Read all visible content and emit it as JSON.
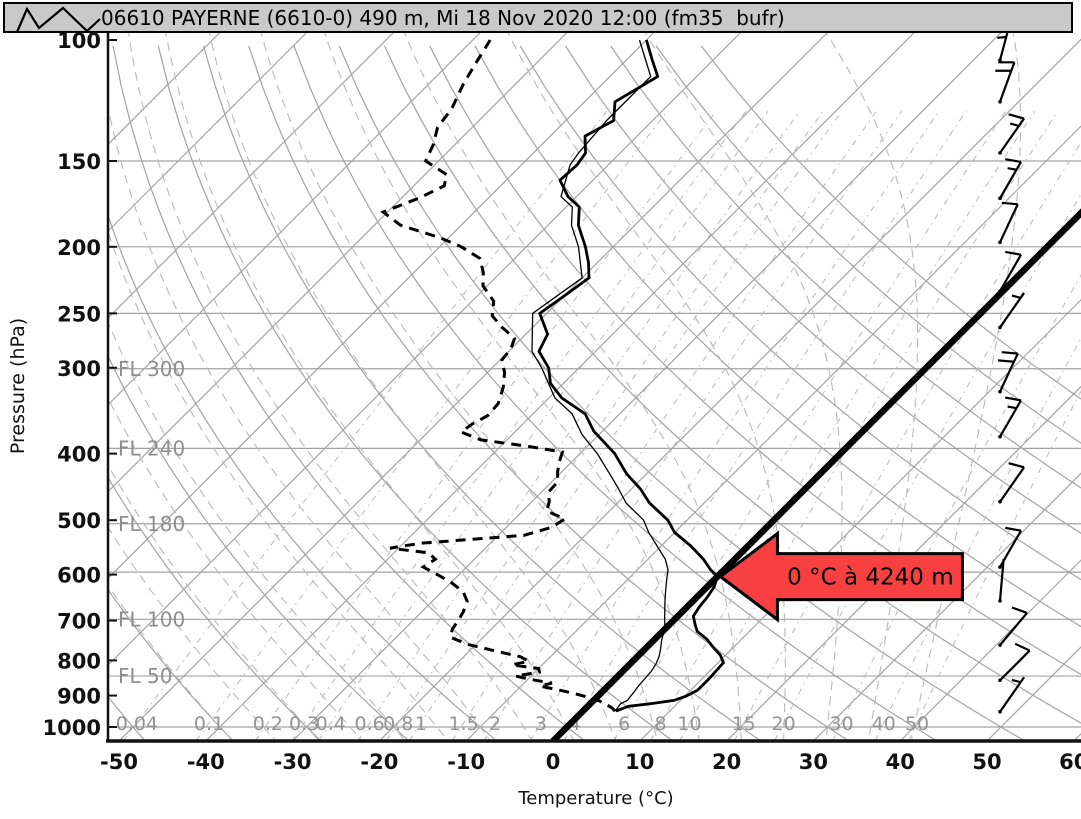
{
  "header": {
    "title": "06610 PAYERNE (6610-0) 490 m, Mi 18 Nov 2020 12:00 (fm35  bufr)",
    "logo_icon": "zigzag-mountains"
  },
  "axes": {
    "pressure": {
      "title": "Pressure (hPa)",
      "ticks": [
        100,
        150,
        200,
        250,
        300,
        400,
        500,
        600,
        700,
        800,
        900,
        1000
      ],
      "scale": "log",
      "top_hpa": 100,
      "bottom_hpa": 1047
    },
    "temperature": {
      "title": "Temperature (°C)",
      "ticks": [
        -50,
        -40,
        -30,
        -20,
        -10,
        0,
        10,
        20,
        30,
        40,
        50,
        60
      ],
      "skew": "45deg"
    }
  },
  "flight_levels": [
    {
      "label": "FL 300",
      "p": 301
    },
    {
      "label": "FL 240",
      "p": 393
    },
    {
      "label": "FL 180",
      "p": 506
    },
    {
      "label": "",
      "p": 595
    },
    {
      "label": "FL 100",
      "p": 697
    },
    {
      "label": "FL 50",
      "p": 843
    }
  ],
  "pressure_gridlines": [
    150,
    200,
    250,
    1000
  ],
  "isopleths": {
    "isotherm_step_c": 10,
    "isotherm_min_c": -120,
    "isotherm_max_c": 60,
    "highlight_isotherm_c": 0,
    "dry_adiabats_theta_c": [
      -50,
      -40,
      -30,
      -20,
      -10,
      0,
      10,
      20,
      30,
      40,
      50,
      60,
      70,
      80,
      90,
      100,
      110,
      120,
      130
    ],
    "moist_adiabats_thetaw_c": [
      -40,
      -35,
      -30,
      -25,
      -20,
      -15,
      -10,
      -5,
      0,
      5,
      10,
      15,
      20,
      25,
      30,
      35,
      40
    ],
    "mixing_ratio_g_kg": [
      0.04,
      0.1,
      0.2,
      0.3,
      0.4,
      0.6,
      0.8,
      1,
      1.5,
      2,
      3,
      4,
      6,
      8,
      10,
      15,
      20,
      30,
      40,
      50
    ]
  },
  "annotation": {
    "freezing_level_label": "0 °C à 4240 m",
    "arrow_color": "#f94040",
    "points_to": {
      "t_c": 0,
      "p_hpa": 604
    }
  },
  "colors": {
    "header_bg": "#c9c9c9",
    "grid_solid": "#a3a3a3",
    "grid_moist": "#b9b9b9",
    "grid_mixing": "#bfbfbf",
    "grid_label": "#949494",
    "curve": "#000000",
    "zero_line": "#000000",
    "arrow_fill": "#f94040"
  },
  "chart_data": {
    "type": "line (skew-T log-P thermodynamic sounding)",
    "station": "06610 Payerne, 490 m",
    "valid": "Mi 18 Nov 2020 12:00",
    "x_axis": "Temperature (°C), skewed 45°, -50..60 labelled",
    "y_axis": "Pressure (hPa), log scale, 100..1000 labelled",
    "series": [
      {
        "name": "temperature",
        "style": "solid-thick",
        "points": [
          [
            100,
            -70
          ],
          [
            107,
            -67
          ],
          [
            113,
            -64.5
          ],
          [
            123,
            -66.5
          ],
          [
            131,
            -64.5
          ],
          [
            138,
            -66
          ],
          [
            146,
            -64
          ],
          [
            152,
            -63.6
          ],
          [
            160,
            -63.8
          ],
          [
            169,
            -61
          ],
          [
            175,
            -58.5
          ],
          [
            186,
            -56.5
          ],
          [
            200,
            -53.2
          ],
          [
            211,
            -51
          ],
          [
            222,
            -49.2
          ],
          [
            236,
            -50
          ],
          [
            250,
            -50.8
          ],
          [
            268,
            -47.5
          ],
          [
            284,
            -46.5
          ],
          [
            300,
            -43.5
          ],
          [
            316,
            -41.5
          ],
          [
            332,
            -38.5
          ],
          [
            350,
            -34
          ],
          [
            371,
            -31
          ],
          [
            400,
            -26
          ],
          [
            428,
            -22.3
          ],
          [
            450,
            -19
          ],
          [
            472,
            -16.3
          ],
          [
            500,
            -12.2
          ],
          [
            521,
            -10
          ],
          [
            545,
            -6.6
          ],
          [
            570,
            -3.6
          ],
          [
            590,
            -1.6
          ],
          [
            604,
            0
          ],
          [
            625,
            0.8
          ],
          [
            647,
            1.2
          ],
          [
            668,
            1.4
          ],
          [
            690,
            1.8
          ],
          [
            710,
            3
          ],
          [
            726,
            4
          ],
          [
            745,
            6
          ],
          [
            766,
            7.7
          ],
          [
            786,
            9.4
          ],
          [
            806,
            10.6
          ],
          [
            826,
            10.7
          ],
          [
            846,
            10.8
          ],
          [
            866,
            10.8
          ],
          [
            884,
            10.8
          ],
          [
            901,
            10.2
          ],
          [
            914,
            9.3
          ],
          [
            924,
            7.2
          ],
          [
            933,
            4.7
          ],
          [
            941,
            4.2
          ],
          [
            948,
            3.8
          ]
        ]
      },
      {
        "name": "dewpoint",
        "style": "dashed-thick",
        "points": [
          [
            100,
            -88
          ],
          [
            108,
            -87
          ],
          [
            116,
            -86
          ],
          [
            126,
            -84.5
          ],
          [
            134,
            -84
          ],
          [
            142,
            -82.5
          ],
          [
            150,
            -81.5
          ],
          [
            157,
            -77.5
          ],
          [
            163,
            -76.5
          ],
          [
            170,
            -78
          ],
          [
            178,
            -80.5
          ],
          [
            186,
            -77
          ],
          [
            194,
            -71
          ],
          [
            200,
            -67.5
          ],
          [
            208,
            -64
          ],
          [
            218,
            -62
          ],
          [
            228,
            -60.5
          ],
          [
            240,
            -57.5
          ],
          [
            252,
            -56
          ],
          [
            262,
            -53.5
          ],
          [
            272,
            -50.8
          ],
          [
            282,
            -50
          ],
          [
            292,
            -49.8
          ],
          [
            305,
            -48
          ],
          [
            320,
            -46.5
          ],
          [
            338,
            -45.2
          ],
          [
            352,
            -45
          ],
          [
            362,
            -45.8
          ],
          [
            372,
            -46.2
          ],
          [
            382,
            -43
          ],
          [
            390,
            -37
          ],
          [
            398,
            -32.2
          ],
          [
            410,
            -31.5
          ],
          [
            425,
            -30.5
          ],
          [
            440,
            -29.3
          ],
          [
            455,
            -29.2
          ],
          [
            470,
            -28
          ],
          [
            485,
            -27.2
          ],
          [
            498,
            -24.2
          ],
          [
            512,
            -24.8
          ],
          [
            526,
            -27
          ],
          [
            540,
            -38
          ],
          [
            549,
            -41
          ],
          [
            558,
            -36
          ],
          [
            570,
            -34.5
          ],
          [
            585,
            -35
          ],
          [
            600,
            -32.5
          ],
          [
            616,
            -30
          ],
          [
            636,
            -27.5
          ],
          [
            656,
            -26
          ],
          [
            680,
            -25.2
          ],
          [
            700,
            -24.8
          ],
          [
            720,
            -24.5
          ],
          [
            740,
            -23.8
          ],
          [
            758,
            -21
          ],
          [
            775,
            -17
          ],
          [
            790,
            -13.5
          ],
          [
            802,
            -12
          ],
          [
            812,
            -13.5
          ],
          [
            822,
            -10
          ],
          [
            832,
            -9.5
          ],
          [
            843,
            -11.8
          ],
          [
            855,
            -9
          ],
          [
            863,
            -6.8
          ],
          [
            872,
            -7.8
          ],
          [
            882,
            -5.5
          ],
          [
            893,
            -3.2
          ],
          [
            905,
            -1
          ],
          [
            917,
            0.8
          ],
          [
            928,
            2
          ],
          [
            938,
            3
          ],
          [
            948,
            3.7
          ]
        ]
      },
      {
        "name": "wet_bulb",
        "style": "solid-thin",
        "points": [
          [
            100,
            -70.8
          ],
          [
            113,
            -65.3
          ],
          [
            131,
            -65.3
          ],
          [
            146,
            -64.8
          ],
          [
            152,
            -64.4
          ],
          [
            169,
            -61.8
          ],
          [
            175,
            -59.3
          ],
          [
            186,
            -57.3
          ],
          [
            200,
            -54
          ],
          [
            222,
            -50
          ],
          [
            250,
            -51.6
          ],
          [
            284,
            -47.3
          ],
          [
            300,
            -44.3
          ],
          [
            332,
            -39.3
          ],
          [
            350,
            -35.5
          ],
          [
            375,
            -32
          ],
          [
            400,
            -28
          ],
          [
            430,
            -24
          ],
          [
            450,
            -21.5
          ],
          [
            472,
            -19
          ],
          [
            500,
            -15
          ],
          [
            521,
            -13
          ],
          [
            545,
            -10.5
          ],
          [
            570,
            -8
          ],
          [
            590,
            -6.5
          ],
          [
            610,
            -5.5
          ],
          [
            630,
            -4.5
          ],
          [
            650,
            -3.5
          ],
          [
            670,
            -2.5
          ],
          [
            690,
            -1.5
          ],
          [
            710,
            -0.5
          ],
          [
            730,
            0.3
          ],
          [
            750,
            1
          ],
          [
            770,
            1.8
          ],
          [
            790,
            2.5
          ],
          [
            810,
            3
          ],
          [
            830,
            3.3
          ],
          [
            850,
            3.4
          ],
          [
            870,
            3.5
          ],
          [
            890,
            3.7
          ],
          [
            905,
            3.8
          ],
          [
            915,
            3.9
          ],
          [
            925,
            3.5
          ],
          [
            935,
            3.6
          ],
          [
            948,
            3.7
          ]
        ]
      }
    ],
    "wind_barbs": [
      {
        "p": 107,
        "dir": 195,
        "spd": 25
      },
      {
        "p": 123,
        "dir": 200,
        "spd": 20
      },
      {
        "p": 146,
        "dir": 215,
        "spd": 15
      },
      {
        "p": 170,
        "dir": 210,
        "spd": 15
      },
      {
        "p": 197,
        "dir": 205,
        "spd": 10
      },
      {
        "p": 232,
        "dir": 210,
        "spd": 10
      },
      {
        "p": 262,
        "dir": 215,
        "spd": 5
      },
      {
        "p": 325,
        "dir": 205,
        "spd": 20
      },
      {
        "p": 378,
        "dir": 210,
        "spd": 15
      },
      {
        "p": 470,
        "dir": 215,
        "spd": 10
      },
      {
        "p": 585,
        "dir": 210,
        "spd": 10
      },
      {
        "p": 655,
        "dir": 185,
        "spd": 2
      },
      {
        "p": 760,
        "dir": 220,
        "spd": 10
      },
      {
        "p": 855,
        "dir": 225,
        "spd": 10
      },
      {
        "p": 950,
        "dir": 215,
        "spd": 5
      }
    ]
  }
}
